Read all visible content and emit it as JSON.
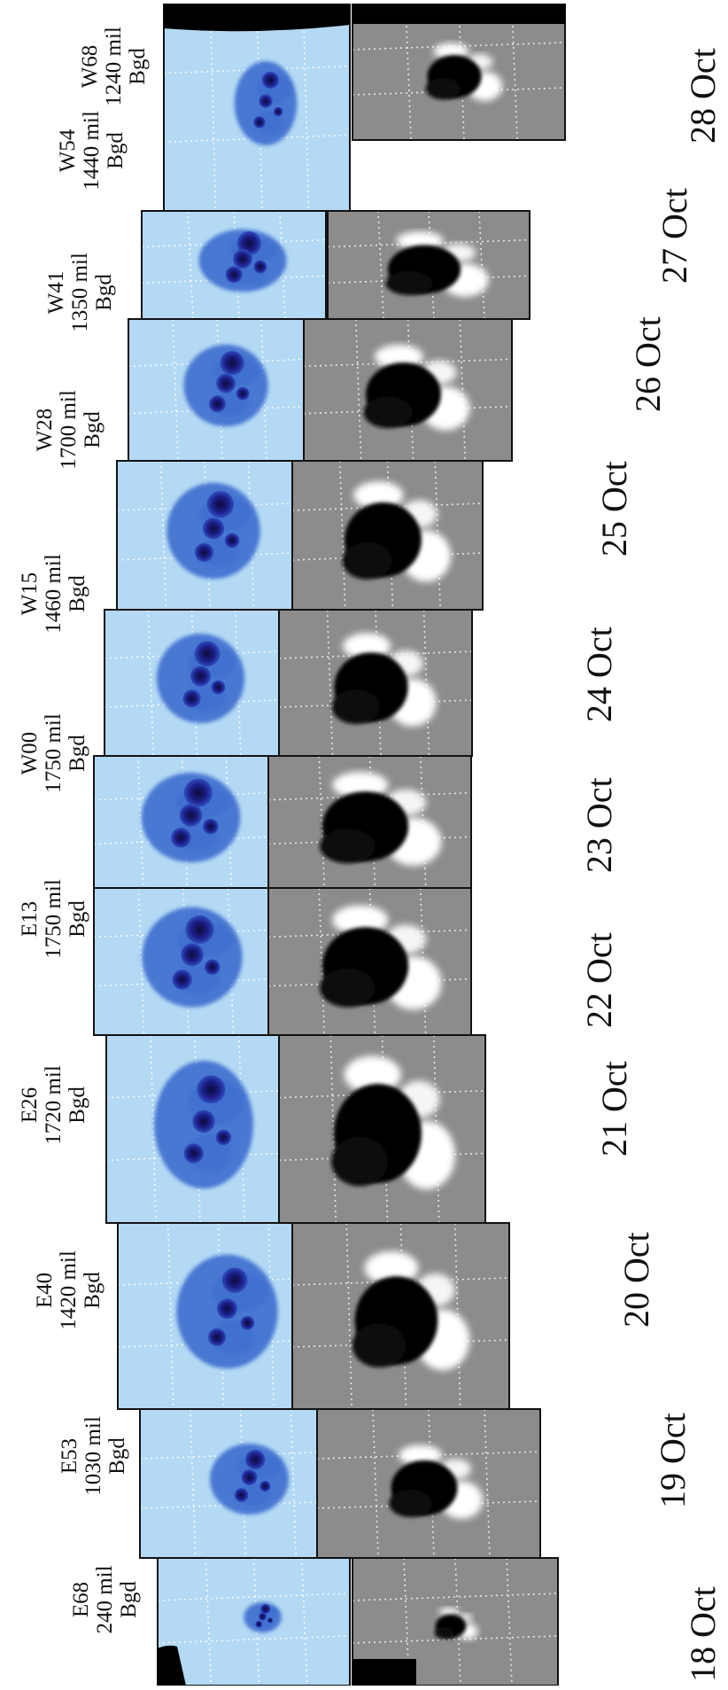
{
  "days": [
    {
      "date": "18 Oct",
      "position": "E68",
      "area": "240 mil",
      "class": "Bgd"
    },
    {
      "date": "19 Oct",
      "position": "E53",
      "area": "1030 mil",
      "class": "Bgd"
    },
    {
      "date": "20 Oct",
      "position": "E40",
      "area": "1420 mil",
      "class": "Bgd"
    },
    {
      "date": "21 Oct",
      "position": "E26",
      "area": "1720 mil",
      "class": "Bgd"
    },
    {
      "date": "22 Oct",
      "position": "E13",
      "area": "1750 mil",
      "class": "Bgd"
    },
    {
      "date": "23 Oct",
      "position": "W00",
      "area": "1750 mil",
      "class": "Bgd"
    },
    {
      "date": "24 Oct",
      "position": "W15",
      "area": "1460 mil",
      "class": "Bgd"
    },
    {
      "date": "25 Oct",
      "position": "W28",
      "area": "1700 mil",
      "class": "Bgd"
    },
    {
      "date": "26 Oct",
      "position": "W41",
      "area": "1350 mil",
      "class": "Bgd"
    },
    {
      "date": "27 Oct",
      "position": "W54",
      "area": "1440 mil",
      "class": "Bgd"
    },
    {
      "date": "28 Oct",
      "position": "W68",
      "area": "1240 mil",
      "class": "Bgd"
    }
  ],
  "colors": {
    "continuum_bg": "#b3d9f4",
    "umbra": "#1d1f8a",
    "penumbra": "#3f6fd0",
    "magnetogram_bg": "#8c8c8c"
  }
}
